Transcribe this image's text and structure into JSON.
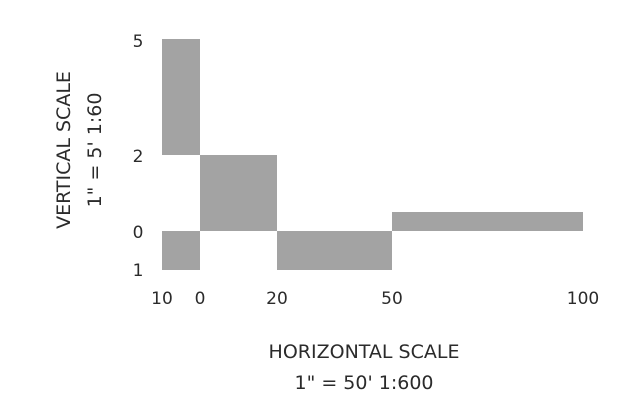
{
  "colors": {
    "block_fill": "#a3a3a3",
    "text": "#2b2b2b",
    "background": "#ffffff"
  },
  "vertical_scale": {
    "title": "VERTICAL SCALE",
    "ratio": "1\" = 5'  1:60",
    "ticks": [
      {
        "label": "5",
        "value": 5
      },
      {
        "label": "2",
        "value": 2
      },
      {
        "label": "0",
        "value": 0
      },
      {
        "label": "1",
        "value": -1
      }
    ]
  },
  "horizontal_scale": {
    "title": "HORIZONTAL SCALE",
    "ratio": "1\" = 50'  1:600",
    "ticks": [
      {
        "label": "10",
        "value": -10
      },
      {
        "label": "0",
        "value": 0
      },
      {
        "label": "20",
        "value": 20
      },
      {
        "label": "50",
        "value": 50
      },
      {
        "label": "100",
        "value": 100
      }
    ]
  },
  "blocks": [
    {
      "x0": -10,
      "x1": 0,
      "y0": 2,
      "y1": 5
    },
    {
      "x0": -10,
      "x1": 0,
      "y0": -1,
      "y1": 0
    },
    {
      "x0": 0,
      "x1": 20,
      "y0": 0,
      "y1": 2
    },
    {
      "x0": 20,
      "x1": 50,
      "y0": -1,
      "y1": 0
    },
    {
      "x0": 50,
      "x1": 100,
      "y0": 0,
      "y1": 0.5
    }
  ]
}
